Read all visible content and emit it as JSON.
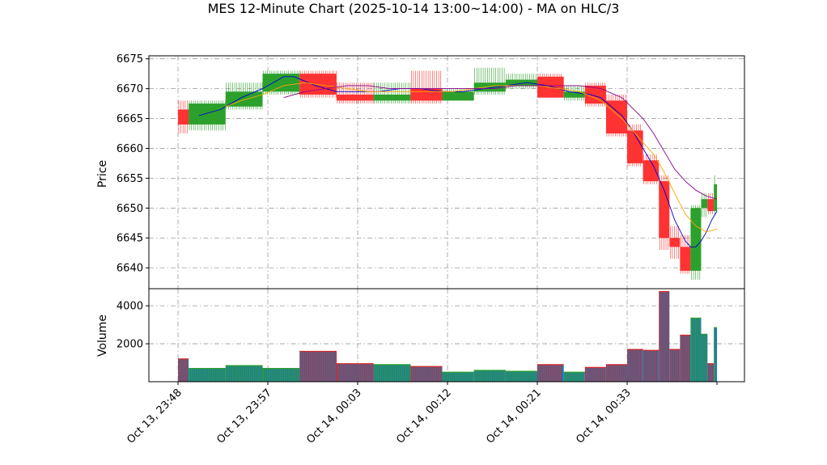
{
  "chart_data": {
    "type": "candlestick",
    "title": "MES 12-Minute Chart (2025-10-14 13:00~14:00) - MA on HLC/3",
    "price_panel": {
      "ylabel": "Price",
      "ylim": [
        6636.5,
        6675.5
      ],
      "yticks": [
        6640,
        6645,
        6650,
        6655,
        6660,
        6665,
        6670,
        6675
      ],
      "grid": true,
      "up_color": "#2ca02c",
      "down_color": "#ff3333"
    },
    "volume_panel": {
      "ylabel": "Volume",
      "ylim": [
        0,
        4900
      ],
      "yticks": [
        2000,
        4000
      ],
      "grid": true,
      "bar_fill": "#1f77b4",
      "up_edge": "#2ca02c",
      "down_edge": "#d62728"
    },
    "xticks": [
      "Oct 13, 23:48",
      "Oct 13, 23:57",
      "Oct 14, 00:03",
      "Oct 14, 00:12",
      "Oct 14, 00:21",
      "Oct 14, 00:33",
      ""
    ],
    "bars": [
      {
        "t": 0.0,
        "w": 1.0,
        "o": 6666.5,
        "h": 6668.0,
        "l": 6662.5,
        "c": 6664.0,
        "v": 1200
      },
      {
        "t": 1.0,
        "w": 3.5,
        "o": 6664.0,
        "h": 6668.0,
        "l": 6663.0,
        "c": 6667.5,
        "v": 700
      },
      {
        "t": 4.5,
        "w": 3.5,
        "o": 6667.0,
        "h": 6671.0,
        "l": 6666.5,
        "c": 6669.5,
        "v": 850
      },
      {
        "t": 8.0,
        "w": 3.5,
        "o": 6669.5,
        "h": 6673.0,
        "l": 6669.0,
        "c": 6672.5,
        "v": 700
      },
      {
        "t": 11.5,
        "w": 3.5,
        "o": 6672.5,
        "h": 6673.0,
        "l": 6668.5,
        "c": 6669.0,
        "v": 1600
      },
      {
        "t": 15.0,
        "w": 3.5,
        "o": 6669.0,
        "h": 6671.0,
        "l": 6667.5,
        "c": 6668.0,
        "v": 950
      },
      {
        "t": 18.5,
        "w": 3.5,
        "o": 6668.0,
        "h": 6671.0,
        "l": 6667.5,
        "c": 6669.0,
        "v": 900
      },
      {
        "t": 22.0,
        "w": 3.0,
        "o": 6670.0,
        "h": 6673.0,
        "l": 6667.5,
        "c": 6668.0,
        "v": 800
      },
      {
        "t": 25.0,
        "w": 3.0,
        "o": 6668.0,
        "h": 6670.0,
        "l": 6668.0,
        "c": 6669.5,
        "v": 500
      },
      {
        "t": 28.0,
        "w": 3.0,
        "o": 6669.5,
        "h": 6673.5,
        "l": 6669.0,
        "c": 6671.0,
        "v": 600
      },
      {
        "t": 31.0,
        "w": 3.0,
        "o": 6670.5,
        "h": 6672.5,
        "l": 6670.0,
        "c": 6671.5,
        "v": 550
      },
      {
        "t": 34.0,
        "w": 2.5,
        "o": 6672.0,
        "h": 6672.5,
        "l": 6668.5,
        "c": 6668.5,
        "v": 900
      },
      {
        "t": 36.5,
        "w": 2.0,
        "o": 6668.5,
        "h": 6670.5,
        "l": 6668.0,
        "c": 6669.5,
        "v": 500
      },
      {
        "t": 38.5,
        "w": 2.0,
        "o": 6670.5,
        "h": 6671.0,
        "l": 6667.0,
        "c": 6667.5,
        "v": 750
      },
      {
        "t": 40.5,
        "w": 2.0,
        "o": 6668.0,
        "h": 6669.0,
        "l": 6662.0,
        "c": 6662.5,
        "v": 900
      },
      {
        "t": 42.5,
        "w": 1.5,
        "o": 6663.0,
        "h": 6664.0,
        "l": 6657.0,
        "c": 6657.5,
        "v": 1700
      },
      {
        "t": 44.0,
        "w": 1.5,
        "o": 6658.0,
        "h": 6659.0,
        "l": 6654.0,
        "c": 6654.5,
        "v": 1650
      },
      {
        "t": 45.5,
        "w": 1.0,
        "o": 6654.5,
        "h": 6655.5,
        "l": 6643.0,
        "c": 6645.0,
        "v": 4750
      },
      {
        "t": 46.5,
        "w": 1.0,
        "o": 6645.0,
        "h": 6647.0,
        "l": 6641.5,
        "c": 6643.5,
        "v": 1700
      },
      {
        "t": 47.5,
        "w": 1.0,
        "o": 6643.5,
        "h": 6645.5,
        "l": 6639.0,
        "c": 6639.5,
        "v": 2450
      },
      {
        "t": 48.5,
        "w": 1.0,
        "o": 6639.5,
        "h": 6650.5,
        "l": 6638.0,
        "c": 6650.0,
        "v": 3350
      },
      {
        "t": 49.5,
        "w": 0.6,
        "o": 6650.0,
        "h": 6652.5,
        "l": 6648.5,
        "c": 6651.5,
        "v": 2500
      },
      {
        "t": 50.1,
        "w": 0.6,
        "o": 6651.5,
        "h": 6652.5,
        "l": 6649.0,
        "c": 6649.5,
        "v": 950
      },
      {
        "t": 50.7,
        "w": 0.3,
        "o": 6649.5,
        "h": 6655.5,
        "l": 6649.0,
        "c": 6654.0,
        "v": 2850
      }
    ],
    "ma_lines": [
      {
        "color": "#0000cc",
        "points": [
          [
            2.0,
            6665.5
          ],
          [
            4.0,
            6666.5
          ],
          [
            6.0,
            6668.5
          ],
          [
            8.0,
            6670.0
          ],
          [
            10.0,
            6672.0
          ],
          [
            11.0,
            6672.0
          ],
          [
            13.0,
            6670.5
          ],
          [
            15.0,
            6669.5
          ],
          [
            17.0,
            6669.5
          ],
          [
            19.0,
            6669.5
          ],
          [
            21.0,
            6670.0
          ],
          [
            23.0,
            6670.0
          ],
          [
            25.0,
            6669.5
          ],
          [
            27.0,
            6669.5
          ],
          [
            29.0,
            6670.0
          ],
          [
            31.0,
            6670.5
          ],
          [
            33.0,
            6671.0
          ],
          [
            35.0,
            6670.5
          ],
          [
            37.0,
            6669.5
          ],
          [
            39.0,
            6669.0
          ],
          [
            40.0,
            6668.5
          ],
          [
            41.0,
            6667.0
          ],
          [
            42.0,
            6665.5
          ],
          [
            43.0,
            6663.0
          ],
          [
            44.0,
            6660.0
          ],
          [
            45.0,
            6657.0
          ],
          [
            46.0,
            6653.0
          ],
          [
            47.0,
            6648.0
          ],
          [
            48.0,
            6644.5
          ],
          [
            48.5,
            6643.5
          ],
          [
            49.0,
            6643.5
          ],
          [
            49.5,
            6644.5
          ],
          [
            50.0,
            6646.0
          ],
          [
            50.5,
            6648.0
          ],
          [
            51.0,
            6649.5
          ]
        ]
      },
      {
        "color": "#ffa500",
        "points": [
          [
            4.5,
            6667.0
          ],
          [
            6.0,
            6668.0
          ],
          [
            8.0,
            6669.0
          ],
          [
            10.0,
            6670.5
          ],
          [
            12.0,
            6671.0
          ],
          [
            14.0,
            6670.5
          ],
          [
            16.0,
            6670.0
          ],
          [
            18.0,
            6669.5
          ],
          [
            20.0,
            6669.5
          ],
          [
            22.0,
            6669.5
          ],
          [
            24.0,
            6669.5
          ],
          [
            26.0,
            6669.5
          ],
          [
            28.0,
            6670.0
          ],
          [
            30.0,
            6670.5
          ],
          [
            32.0,
            6670.5
          ],
          [
            34.0,
            6670.5
          ],
          [
            36.0,
            6670.0
          ],
          [
            38.0,
            6669.5
          ],
          [
            40.0,
            6668.0
          ],
          [
            42.0,
            6665.0
          ],
          [
            44.0,
            6661.0
          ],
          [
            45.0,
            6659.0
          ],
          [
            46.0,
            6656.0
          ],
          [
            47.0,
            6652.5
          ],
          [
            48.0,
            6649.0
          ],
          [
            49.0,
            6647.0
          ],
          [
            50.0,
            6646.0
          ],
          [
            51.0,
            6646.5
          ]
        ]
      },
      {
        "color": "#8b008b",
        "points": [
          [
            10.0,
            6668.5
          ],
          [
            12.0,
            6669.5
          ],
          [
            14.0,
            6670.0
          ],
          [
            16.0,
            6670.5
          ],
          [
            18.0,
            6670.5
          ],
          [
            20.0,
            6670.0
          ],
          [
            22.0,
            6670.0
          ],
          [
            24.0,
            6670.0
          ],
          [
            26.0,
            6670.0
          ],
          [
            28.0,
            6670.0
          ],
          [
            30.0,
            6670.0
          ],
          [
            32.0,
            6670.5
          ],
          [
            34.0,
            6670.5
          ],
          [
            36.0,
            6670.5
          ],
          [
            38.0,
            6670.5
          ],
          [
            40.0,
            6670.0
          ],
          [
            42.0,
            6668.5
          ],
          [
            44.0,
            6665.0
          ],
          [
            45.0,
            6662.5
          ],
          [
            46.0,
            6659.5
          ],
          [
            47.0,
            6656.5
          ],
          [
            48.0,
            6654.5
          ],
          [
            49.0,
            6653.0
          ],
          [
            50.0,
            6652.0
          ],
          [
            51.0,
            6651.5
          ]
        ]
      }
    ]
  }
}
